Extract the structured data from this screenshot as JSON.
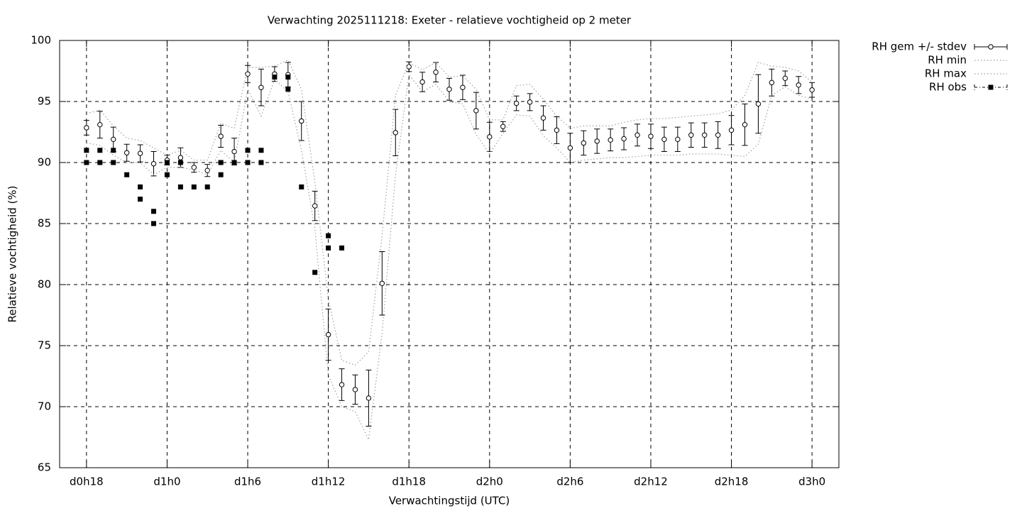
{
  "chart_data": {
    "type": "line",
    "title": "Verwachting 2025111218: Exeter - relatieve vochtigheid op 2 meter",
    "x_label": "Verwachtingstijd (UTC)",
    "y_label": "Relatieve vochtigheid (%)",
    "x": [
      18,
      19,
      20,
      21,
      22,
      23,
      24,
      25,
      26,
      27,
      28,
      29,
      30,
      31,
      32,
      33,
      34,
      35,
      36,
      37,
      38,
      39,
      40,
      41,
      42,
      43,
      44,
      45,
      46,
      47,
      48,
      49,
      50,
      51,
      52,
      53,
      54,
      55,
      56,
      57,
      58,
      59,
      60,
      61,
      62,
      63,
      64,
      65,
      66,
      67,
      68,
      69,
      70,
      71,
      72
    ],
    "series": [
      {
        "name": "RH gem +/- stdev",
        "type": "errorbar",
        "color": "#000000",
        "values": [
          92.85,
          93.1,
          91.9,
          90.8,
          90.75,
          89.9,
          90.2,
          90.4,
          89.6,
          89.35,
          92.15,
          90.9,
          97.25,
          96.15,
          97.25,
          97.2,
          93.4,
          86.45,
          75.9,
          71.8,
          71.4,
          70.7,
          80.1,
          92.45,
          97.85,
          96.6,
          97.4,
          96.0,
          96.15,
          94.25,
          92.1,
          92.95,
          94.85,
          94.95,
          93.65,
          92.65,
          91.2,
          91.6,
          91.75,
          91.85,
          91.95,
          92.25,
          92.15,
          91.9,
          91.9,
          92.25,
          92.25,
          92.25,
          92.65,
          93.1,
          94.8,
          96.55,
          96.9,
          96.35,
          95.95
        ],
        "errors": [
          0.6,
          1.1,
          1.0,
          0.7,
          0.7,
          1.0,
          0.4,
          0.8,
          0.4,
          0.5,
          0.9,
          1.1,
          0.7,
          1.5,
          0.6,
          1.0,
          1.6,
          1.2,
          2.1,
          1.3,
          1.2,
          2.3,
          2.6,
          1.9,
          0.4,
          0.8,
          0.8,
          0.9,
          1.0,
          1.5,
          1.2,
          0.4,
          0.6,
          0.7,
          1.0,
          1.1,
          1.2,
          1.0,
          1.0,
          0.9,
          0.9,
          0.9,
          1.0,
          1.0,
          1.0,
          1.0,
          1.0,
          1.1,
          1.2,
          1.7,
          2.4,
          1.1,
          0.6,
          0.7,
          0.6
        ]
      },
      {
        "name": "RH min",
        "type": "line",
        "color": "#a0a0a0",
        "values": [
          91.6,
          91.4,
          90.6,
          90.0,
          90.0,
          89.0,
          89.6,
          89.6,
          89.4,
          89.0,
          91.0,
          90.0,
          96.0,
          93.8,
          96.8,
          95.8,
          91.0,
          84.6,
          72.6,
          70.0,
          69.6,
          67.3,
          76.0,
          89.0,
          97.2,
          95.8,
          96.4,
          95.0,
          94.8,
          92.3,
          90.7,
          92.4,
          93.9,
          93.8,
          92.2,
          91.2,
          90.0,
          90.2,
          90.3,
          90.4,
          90.4,
          90.5,
          90.6,
          90.6,
          90.6,
          90.7,
          90.7,
          90.7,
          90.6,
          90.5,
          91.5,
          95.5,
          96.2,
          95.5,
          95.2
        ]
      },
      {
        "name": "RH max",
        "type": "line",
        "color": "#a0a0a0",
        "values": [
          94.0,
          94.3,
          93.0,
          92.0,
          91.8,
          91.2,
          90.6,
          91.0,
          90.2,
          90.2,
          93.2,
          92.8,
          97.8,
          97.8,
          97.9,
          98.4,
          96.0,
          88.4,
          78.8,
          73.8,
          73.4,
          74.5,
          84.0,
          95.5,
          98.2,
          97.6,
          98.2,
          97.0,
          97.1,
          96.0,
          93.5,
          93.5,
          96.3,
          96.4,
          95.2,
          93.8,
          92.8,
          93.0,
          93.0,
          93.0,
          93.3,
          93.5,
          93.6,
          93.6,
          93.7,
          93.8,
          93.9,
          94.0,
          94.3,
          95.5,
          98.2,
          97.9,
          97.8,
          97.5,
          96.6
        ]
      },
      {
        "name": "RH obs",
        "type": "scatter",
        "color": "#000000",
        "x": [
          18,
          18,
          19,
          19,
          20,
          20,
          21,
          22,
          22,
          23,
          23,
          24,
          24,
          25,
          25,
          26,
          27,
          28,
          28,
          29,
          30,
          30,
          31,
          31,
          32,
          33,
          33,
          34,
          35,
          36,
          36,
          37
        ],
        "values": [
          91,
          90,
          91,
          90,
          91,
          90,
          89,
          88,
          87,
          86,
          85,
          90,
          89,
          90,
          88,
          88,
          88,
          90,
          89,
          90,
          91,
          90,
          91,
          90,
          97,
          97,
          96,
          88,
          81,
          84,
          83,
          83
        ]
      }
    ],
    "xlim": [
      16,
      74
    ],
    "xticks": [
      {
        "value": 18,
        "label": "d0h18"
      },
      {
        "value": 24,
        "label": "d1h0"
      },
      {
        "value": 30,
        "label": "d1h6"
      },
      {
        "value": 36,
        "label": "d1h12"
      },
      {
        "value": 42,
        "label": "d1h18"
      },
      {
        "value": 48,
        "label": "d2h0"
      },
      {
        "value": 54,
        "label": "d2h6"
      },
      {
        "value": 60,
        "label": "d2h12"
      },
      {
        "value": 66,
        "label": "d2h18"
      },
      {
        "value": 72,
        "label": "d3h0"
      }
    ],
    "ylim": [
      65,
      100
    ],
    "yticks": [
      65,
      70,
      75,
      80,
      85,
      90,
      95,
      100
    ],
    "grid": true,
    "legend": "outside-top-right"
  }
}
